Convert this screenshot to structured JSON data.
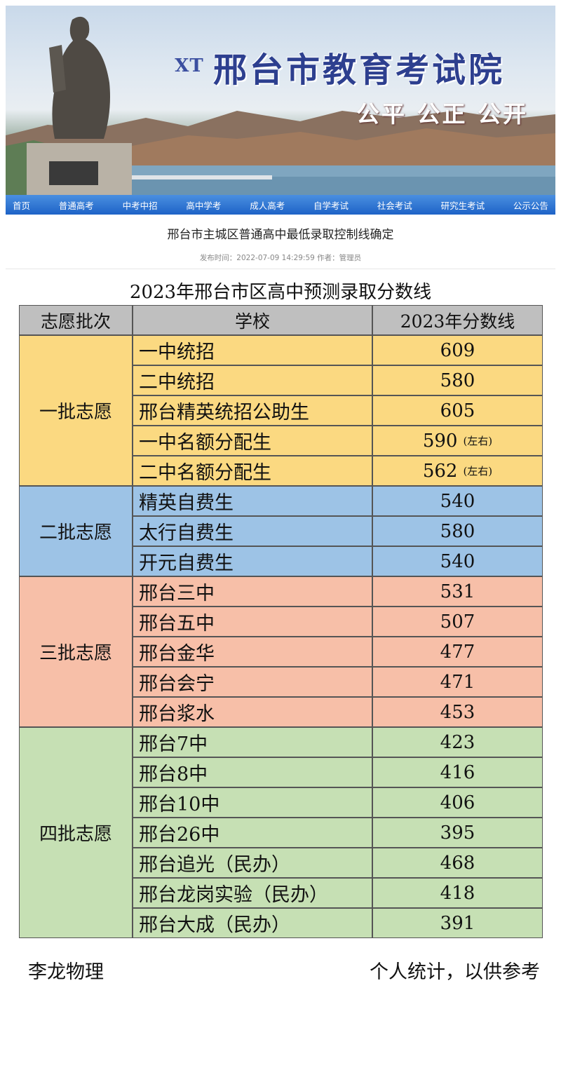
{
  "header": {
    "logo_text": "XT",
    "site_title": "邢台市教育考试院",
    "slogan": "公平 公正 公开"
  },
  "nav": {
    "items": [
      "首页",
      "普通高考",
      "中考中招",
      "高中学考",
      "成人高考",
      "自学考试",
      "社会考试",
      "研究生考试",
      "公示公告"
    ]
  },
  "article": {
    "title": "邢台市主城区普通高中最低录取控制线确定",
    "meta": "发布时间：2022-07-09 14:29:59 作者：管理员"
  },
  "table": {
    "caption": "2023年邢台市区高中预测录取分数线",
    "headers": [
      "志愿批次",
      "学校",
      "2023年分数线"
    ],
    "groups": [
      {
        "batch": "一批志愿",
        "color": "#fbd981",
        "rows": [
          {
            "school": "一中统招",
            "score": "609",
            "note": ""
          },
          {
            "school": "二中统招",
            "score": "580",
            "note": ""
          },
          {
            "school": "邢台精英统招公助生",
            "score": "605",
            "note": ""
          },
          {
            "school": "一中名额分配生",
            "score": "590",
            "note": "(左右)"
          },
          {
            "school": "二中名额分配生",
            "score": "562",
            "note": "(左右)"
          }
        ]
      },
      {
        "batch": "二批志愿",
        "color": "#9dc3e6",
        "rows": [
          {
            "school": "精英自费生",
            "score": "540",
            "note": ""
          },
          {
            "school": "太行自费生",
            "score": "580",
            "note": ""
          },
          {
            "school": "开元自费生",
            "score": "540",
            "note": ""
          }
        ]
      },
      {
        "batch": "三批志愿",
        "color": "#f7bfa8",
        "rows": [
          {
            "school": "邢台三中",
            "score": "531",
            "note": ""
          },
          {
            "school": "邢台五中",
            "score": "507",
            "note": ""
          },
          {
            "school": "邢台金华",
            "score": "477",
            "note": ""
          },
          {
            "school": "邢台会宁",
            "score": "471",
            "note": ""
          },
          {
            "school": "邢台浆水",
            "score": "453",
            "note": ""
          }
        ]
      },
      {
        "batch": "四批志愿",
        "color": "#c6e0b4",
        "rows": [
          {
            "school": "邢台7中",
            "score": "423",
            "note": ""
          },
          {
            "school": "邢台8中",
            "score": "416",
            "note": ""
          },
          {
            "school": "邢台10中",
            "score": "406",
            "note": ""
          },
          {
            "school": "邢台26中",
            "score": "395",
            "note": ""
          },
          {
            "school": "邢台追光（民办）",
            "score": "468",
            "note": ""
          },
          {
            "school": "邢台龙岗实验（民办）",
            "score": "418",
            "note": ""
          },
          {
            "school": "邢台大成（民办）",
            "score": "391",
            "note": ""
          }
        ]
      }
    ]
  },
  "footer": {
    "author": "李龙物理",
    "disclaimer": "个人统计，以供参考"
  }
}
